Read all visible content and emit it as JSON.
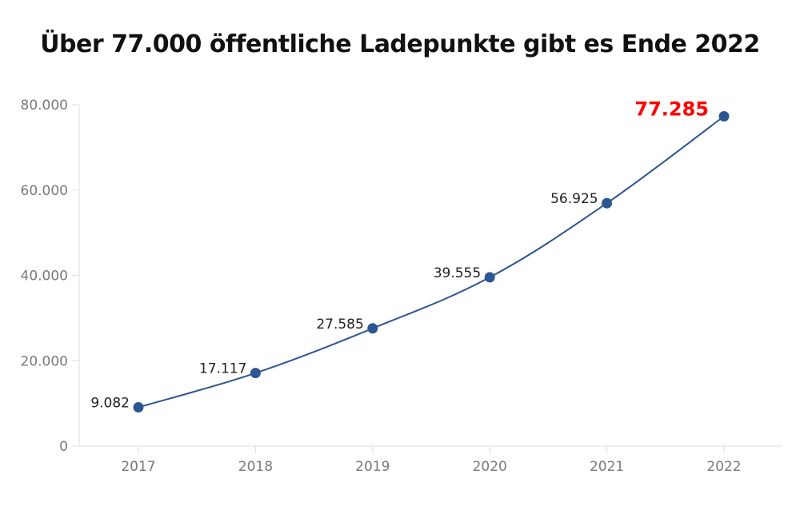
{
  "chart_data": {
    "type": "line",
    "title": "Über 77.000 öffentliche Ladepunkte gibt es Ende 2022",
    "xlabel": "",
    "ylabel": "",
    "categories": [
      "2017",
      "2018",
      "2019",
      "2020",
      "2021",
      "2022"
    ],
    "values": [
      9082,
      17117,
      27585,
      39555,
      56925,
      77285
    ],
    "data_labels": [
      "9.082",
      "17.117",
      "27.585",
      "39.555",
      "56.925",
      "77.285"
    ],
    "highlight_index": 5,
    "ylim": [
      0,
      80000
    ],
    "yticks": [
      0,
      20000,
      40000,
      60000,
      80000
    ],
    "ytick_labels": [
      "0",
      "20.000",
      "40.000",
      "60.000",
      "80.000"
    ],
    "grid": false,
    "colors": {
      "line": "#2d5591",
      "marker": "#2d5591",
      "highlight": "#ff0000",
      "axis": "#dddddd"
    }
  }
}
